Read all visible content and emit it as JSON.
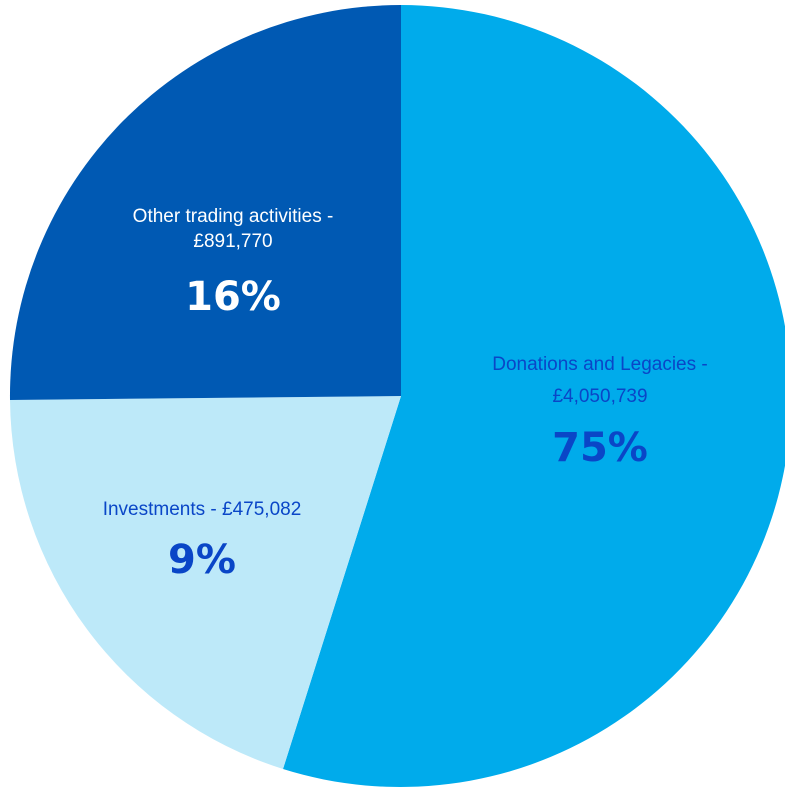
{
  "chart_data": {
    "type": "pie",
    "slices": [
      {
        "label": "Donations and Legacies -",
        "amount": "£4,050,739",
        "percent": "75%",
        "value": 4050739,
        "color": "#00abeb"
      },
      {
        "label": "Investments - £475,082",
        "amount": "",
        "percent": "9%",
        "value": 475082,
        "color": "#bde9f9"
      },
      {
        "label": "Other trading activities -",
        "amount": "£891,770",
        "percent": "16%",
        "value": 891770,
        "color": "#0059b3"
      }
    ],
    "label_colors": {
      "light_text": "#ffffff",
      "dark_text": "#0a46c7"
    }
  }
}
